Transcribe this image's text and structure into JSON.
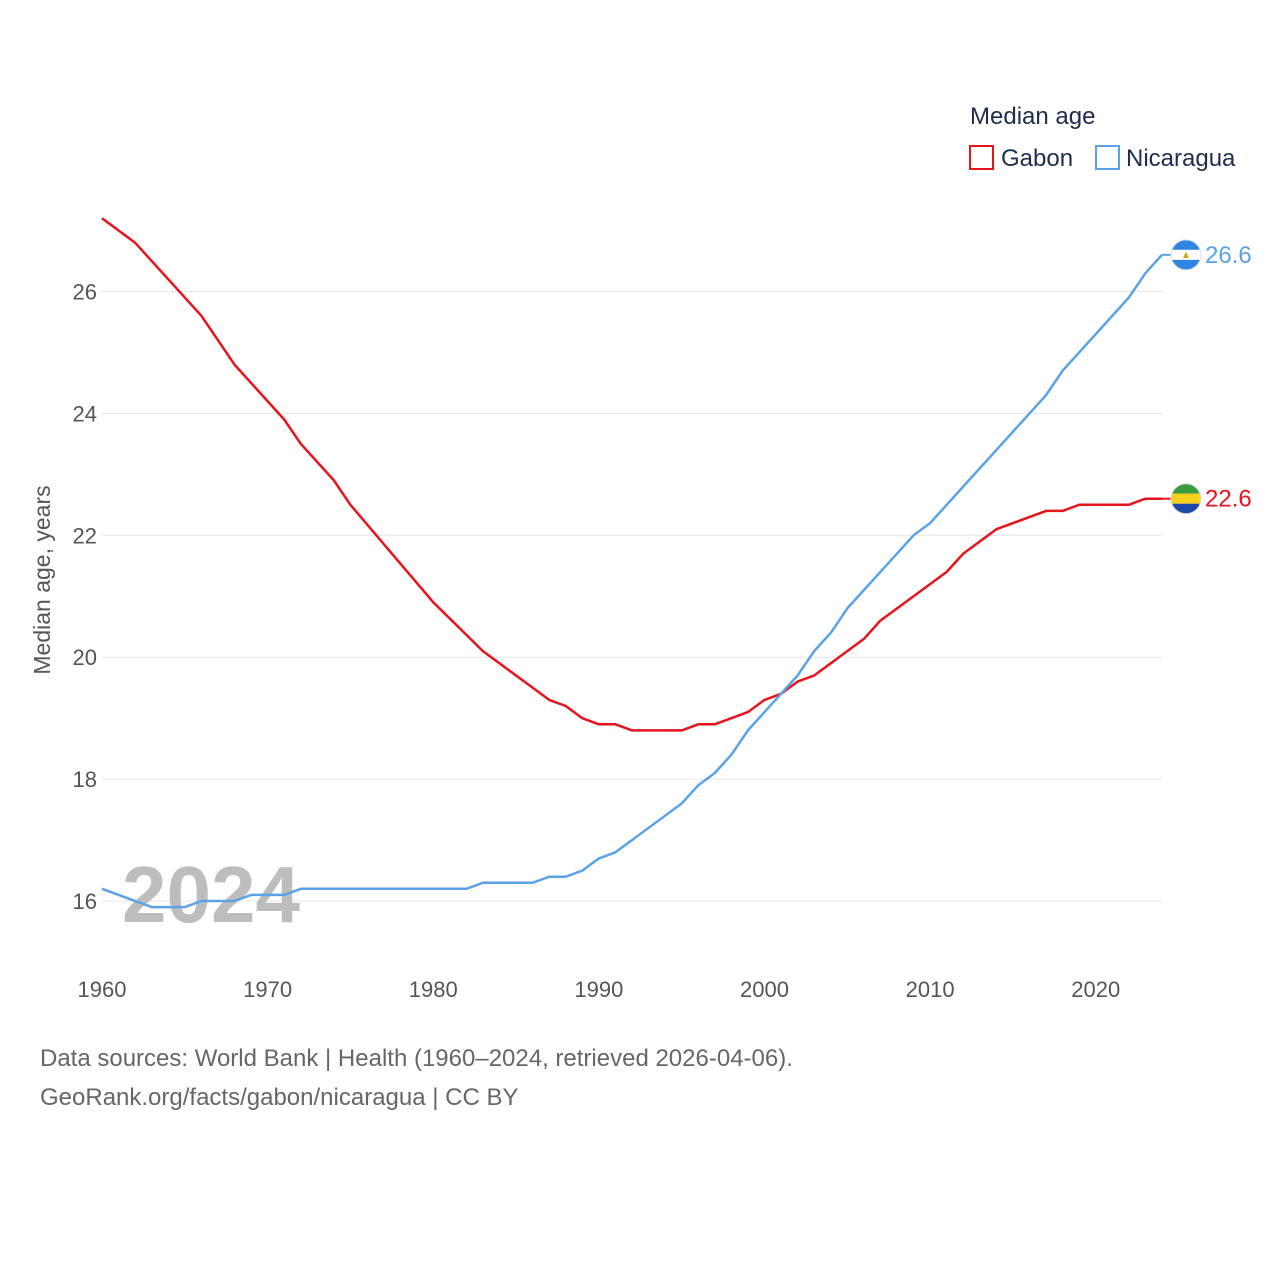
{
  "chart_data": {
    "type": "line",
    "title": "",
    "xlabel": "",
    "ylabel": "Median age, years",
    "xlim": [
      1960,
      2024
    ],
    "ylim": [
      15,
      27.5
    ],
    "x_ticks": [
      1960,
      1970,
      1980,
      1990,
      2000,
      2010,
      2020
    ],
    "y_ticks": [
      16,
      18,
      20,
      22,
      24,
      26
    ],
    "year_label": "2024",
    "legend": {
      "title": "Median age",
      "position": "top-right"
    },
    "series": [
      {
        "name": "Gabon",
        "color": "#e8141c",
        "end_label": "22.6",
        "flag_icon": "gabon-flag-icon",
        "x": [
          1960,
          1962,
          1966,
          1968,
          1971,
          1972,
          1974,
          1975,
          1980,
          1983,
          1987,
          1988,
          1989,
          1990,
          1991,
          1992,
          1995,
          1996,
          1997,
          1999,
          2000,
          2001,
          2002,
          2003,
          2005,
          2006,
          2007,
          2009,
          2011,
          2012,
          2014,
          2017,
          2018,
          2019,
          2022,
          2023,
          2024
        ],
        "values": [
          27.2,
          26.8,
          25.6,
          24.8,
          23.9,
          23.5,
          22.9,
          22.5,
          20.9,
          20.1,
          19.3,
          19.2,
          19.0,
          18.9,
          18.9,
          18.8,
          18.8,
          18.9,
          18.9,
          19.1,
          19.3,
          19.4,
          19.6,
          19.7,
          20.1,
          20.3,
          20.6,
          21.0,
          21.4,
          21.7,
          22.1,
          22.4,
          22.4,
          22.5,
          22.5,
          22.6,
          22.6
        ]
      },
      {
        "name": "Nicaragua",
        "color": "#5ba3e6",
        "end_label": "26.6",
        "flag_icon": "nicaragua-flag-icon",
        "x": [
          1960,
          1963,
          1965,
          1966,
          1968,
          1969,
          1971,
          1972,
          1982,
          1983,
          1986,
          1987,
          1988,
          1989,
          1990,
          1991,
          1995,
          1996,
          1997,
          1998,
          1999,
          2002,
          2003,
          2004,
          2005,
          2009,
          2010,
          2017,
          2018,
          2022,
          2023,
          2024
        ],
        "values": [
          16.2,
          15.9,
          15.9,
          16.0,
          16.0,
          16.1,
          16.1,
          16.2,
          16.2,
          16.3,
          16.3,
          16.4,
          16.4,
          16.5,
          16.7,
          16.8,
          17.6,
          17.9,
          18.1,
          18.4,
          18.8,
          19.7,
          20.1,
          20.4,
          20.8,
          22.0,
          22.2,
          24.3,
          24.7,
          25.9,
          26.3,
          26.6
        ]
      }
    ]
  },
  "footer": {
    "sources": "Data sources: World Bank | Health (1960–2024, retrieved 2026-04-06).",
    "credit": "GeoRank.org/facts/gabon/nicaragua | CC BY"
  }
}
